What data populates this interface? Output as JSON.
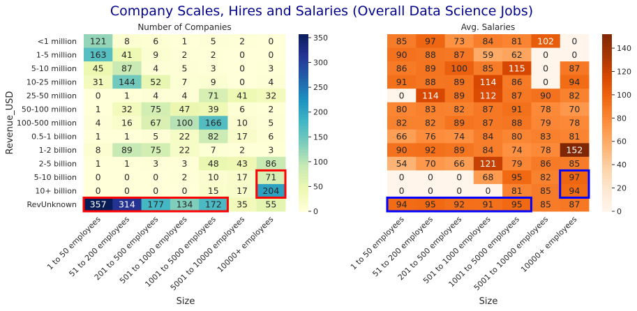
{
  "suptitle": "Company Scales, Hires and Salaries (Overall Data Science Jobs)",
  "suptitle_color": "#00008b",
  "chart_data": [
    {
      "type": "heatmap",
      "title": "Number of Companies",
      "xlabel": "Size",
      "ylabel": "Revenue_USD",
      "colormap": "YlGnBu",
      "vmin": 0,
      "vmax": 357,
      "colorbar_ticks": [
        0,
        50,
        100,
        150,
        200,
        250,
        300,
        350
      ],
      "x": [
        "1 to 50 employees",
        "51 to 200 employees",
        "201 to 500 employees",
        "501 to 1000 employees",
        "1001 to 5000 employees",
        "5001 to 10000 employees",
        "10000+ employees"
      ],
      "y": [
        "<1 million",
        "1-5 million",
        "5-10 million",
        "10-25 million",
        "25-50 million",
        "50-100 million",
        "100-500 million",
        "0.5-1 billion",
        "1-2 billion",
        "2-5 billion",
        "5-10 billion",
        "10+ billion",
        "RevUnknown"
      ],
      "values": [
        [
          121,
          8,
          6,
          1,
          5,
          2,
          0
        ],
        [
          163,
          41,
          9,
          2,
          2,
          0,
          0
        ],
        [
          45,
          87,
          4,
          5,
          3,
          0,
          3
        ],
        [
          31,
          144,
          52,
          7,
          9,
          0,
          4
        ],
        [
          0,
          1,
          4,
          4,
          71,
          41,
          32
        ],
        [
          1,
          32,
          75,
          47,
          39,
          6,
          2
        ],
        [
          4,
          16,
          67,
          100,
          166,
          10,
          5
        ],
        [
          1,
          1,
          5,
          22,
          82,
          17,
          6
        ],
        [
          8,
          89,
          75,
          22,
          7,
          2,
          3
        ],
        [
          1,
          1,
          3,
          3,
          48,
          43,
          86
        ],
        [
          0,
          0,
          0,
          2,
          10,
          17,
          71
        ],
        [
          0,
          0,
          0,
          0,
          15,
          17,
          204
        ],
        [
          357,
          314,
          177,
          134,
          172,
          35,
          55
        ]
      ],
      "highlights": [
        {
          "color": "#ff0000",
          "rows": [
            12,
            12
          ],
          "cols": [
            0,
            4
          ]
        },
        {
          "color": "#ff0000",
          "rows": [
            10,
            11
          ],
          "cols": [
            6,
            6
          ]
        }
      ]
    },
    {
      "type": "heatmap",
      "title": "Avg. Salaries",
      "xlabel": "Size",
      "ylabel": "",
      "colormap": "Oranges",
      "vmin": 0,
      "vmax": 152,
      "colorbar_ticks": [
        0,
        20,
        40,
        60,
        80,
        100,
        120,
        140
      ],
      "x": [
        "1 to 50 employees",
        "51 to 200 employees",
        "201 to 500 employees",
        "501 to 1000 employees",
        "1001 to 5000 employees",
        "5001 to 10000 employees",
        "10000+ employees"
      ],
      "y": [
        "<1 million",
        "1-5 million",
        "5-10 million",
        "10-25 million",
        "25-50 million",
        "50-100 million",
        "100-500 million",
        "0.5-1 billion",
        "1-2 billion",
        "2-5 billion",
        "5-10 billion",
        "10+ billion",
        "RevUnknown"
      ],
      "values": [
        [
          85,
          97,
          73,
          84,
          81,
          102,
          0
        ],
        [
          90,
          88,
          87,
          59,
          62,
          0,
          0
        ],
        [
          86,
          89,
          100,
          85,
          115,
          0,
          87
        ],
        [
          91,
          88,
          89,
          114,
          86,
          0,
          94
        ],
        [
          0,
          114,
          89,
          112,
          87,
          90,
          82
        ],
        [
          80,
          83,
          82,
          87,
          91,
          78,
          70
        ],
        [
          82,
          82,
          89,
          87,
          88,
          79,
          78
        ],
        [
          66,
          76,
          74,
          84,
          80,
          83,
          81
        ],
        [
          90,
          92,
          89,
          84,
          74,
          78,
          152
        ],
        [
          54,
          70,
          66,
          121,
          79,
          86,
          85
        ],
        [
          0,
          0,
          0,
          68,
          95,
          82,
          97
        ],
        [
          0,
          0,
          0,
          0,
          81,
          85,
          94
        ],
        [
          94,
          95,
          92,
          91,
          95,
          85,
          87
        ]
      ],
      "highlights": [
        {
          "color": "#0000ff",
          "rows": [
            12,
            12
          ],
          "cols": [
            0,
            4
          ]
        },
        {
          "color": "#0000ff",
          "rows": [
            10,
            11
          ],
          "cols": [
            6,
            6
          ]
        }
      ]
    }
  ]
}
